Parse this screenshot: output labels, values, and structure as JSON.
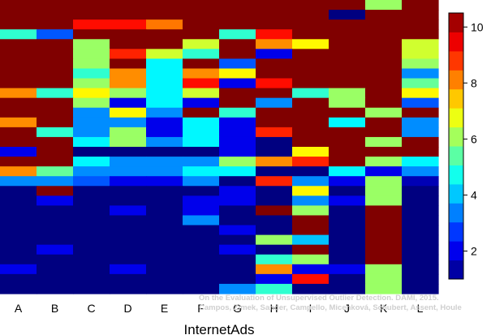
{
  "chart_data": {
    "type": "heatmap",
    "title": "",
    "xlabel": "InternetAds",
    "ylabel": "",
    "categories": [
      "A",
      "B",
      "C",
      "D",
      "E",
      "F",
      "G",
      "H",
      "I",
      "J",
      "K",
      "L"
    ],
    "colorbar": {
      "min": 1,
      "max": 10.5,
      "ticks": [
        2,
        4,
        6,
        8,
        10
      ]
    },
    "row_count": 30,
    "cell_levels": [
      [
        10.5,
        10.5,
        10.5,
        10.5,
        10.5,
        10.5,
        10.5,
        10.5,
        10.5,
        10.5,
        6.0,
        10.5
      ],
      [
        10.5,
        10.5,
        10.5,
        10.5,
        10.5,
        10.5,
        10.5,
        10.5,
        10.5,
        1.0,
        10.5,
        10.5
      ],
      [
        10.5,
        10.5,
        9.2,
        9.2,
        8.2,
        10.5,
        10.5,
        10.5,
        10.5,
        10.5,
        10.5,
        10.5
      ],
      [
        5.0,
        3.0,
        10.5,
        10.5,
        10.5,
        10.5,
        5.0,
        9.2,
        10.5,
        10.5,
        10.5,
        10.5
      ],
      [
        10.5,
        10.5,
        6.0,
        10.5,
        10.5,
        6.5,
        10.5,
        8.0,
        7.0,
        10.5,
        10.5,
        6.5
      ],
      [
        10.5,
        10.5,
        6.0,
        9.0,
        6.5,
        5.0,
        10.5,
        2.0,
        10.5,
        10.5,
        10.5,
        6.5
      ],
      [
        10.5,
        10.5,
        6.0,
        10.5,
        4.5,
        10.5,
        3.0,
        10.5,
        10.5,
        10.5,
        10.5,
        6.0
      ],
      [
        10.5,
        10.5,
        5.0,
        8.0,
        4.5,
        8.0,
        7.0,
        10.5,
        10.5,
        10.5,
        10.5,
        3.5
      ],
      [
        10.5,
        10.5,
        6.0,
        8.0,
        4.5,
        9.2,
        2.0,
        9.2,
        10.5,
        10.5,
        10.5,
        5.5
      ],
      [
        8.0,
        5.0,
        7.0,
        6.0,
        4.5,
        6.5,
        10.5,
        10.5,
        5.0,
        6.0,
        10.5,
        7.0
      ],
      [
        10.5,
        10.5,
        6.0,
        2.0,
        4.5,
        2.0,
        10.5,
        3.5,
        10.5,
        6.0,
        10.5,
        3.0
      ],
      [
        10.5,
        10.5,
        3.5,
        7.0,
        3.5,
        10.5,
        5.0,
        10.5,
        10.5,
        10.5,
        6.0,
        10.5
      ],
      [
        8.0,
        10.5,
        3.5,
        3.5,
        2.0,
        4.5,
        2.0,
        10.5,
        10.5,
        4.5,
        10.5,
        3.5
      ],
      [
        10.5,
        5.0,
        3.5,
        6.0,
        2.0,
        4.5,
        2.0,
        9.0,
        10.5,
        10.5,
        10.5,
        3.5
      ],
      [
        10.5,
        10.5,
        4.5,
        6.0,
        3.5,
        4.5,
        2.0,
        1.0,
        10.5,
        10.5,
        6.0,
        10.5
      ],
      [
        2.0,
        10.5,
        1.0,
        1.0,
        1.0,
        1.0,
        2.0,
        1.0,
        7.0,
        10.5,
        10.5,
        10.5
      ],
      [
        10.5,
        10.5,
        4.5,
        3.5,
        3.5,
        3.5,
        6.0,
        8.0,
        9.0,
        10.5,
        6.0,
        4.5
      ],
      [
        8.0,
        5.5,
        3.5,
        3.5,
        3.5,
        4.5,
        4.5,
        1.0,
        1.0,
        4.5,
        2.0,
        3.5
      ],
      [
        3.5,
        3.5,
        3.0,
        2.0,
        2.0,
        3.5,
        1.0,
        9.0,
        3.5,
        2.0,
        6.0,
        1.5
      ],
      [
        1.0,
        10.5,
        1.0,
        1.0,
        1.0,
        1.0,
        2.0,
        1.0,
        7.0,
        1.0,
        6.0,
        1.0
      ],
      [
        1.0,
        2.0,
        1.0,
        1.0,
        1.0,
        2.0,
        2.0,
        1.0,
        3.5,
        2.0,
        6.0,
        1.0
      ],
      [
        1.0,
        1.0,
        1.0,
        2.0,
        1.0,
        2.0,
        1.0,
        10.5,
        6.0,
        1.0,
        10.5,
        1.0
      ],
      [
        1.0,
        1.0,
        1.0,
        1.0,
        1.0,
        3.5,
        1.0,
        1.0,
        10.5,
        1.0,
        10.5,
        1.0
      ],
      [
        1.0,
        1.0,
        1.0,
        1.0,
        1.0,
        1.0,
        2.0,
        1.0,
        10.5,
        1.0,
        10.5,
        1.0
      ],
      [
        1.0,
        1.0,
        1.0,
        1.0,
        1.0,
        1.0,
        1.0,
        6.0,
        4.0,
        1.0,
        10.5,
        1.0
      ],
      [
        1.0,
        2.0,
        1.0,
        1.0,
        1.0,
        1.0,
        2.0,
        1.0,
        10.5,
        1.0,
        10.5,
        1.0
      ],
      [
        1.0,
        1.0,
        1.0,
        1.0,
        1.0,
        1.0,
        1.0,
        5.0,
        6.0,
        1.0,
        10.5,
        1.0
      ],
      [
        2.0,
        1.0,
        1.0,
        2.0,
        1.0,
        1.0,
        1.0,
        8.0,
        2.0,
        2.0,
        6.0,
        1.0
      ],
      [
        1.0,
        1.0,
        1.0,
        1.0,
        1.0,
        1.0,
        1.0,
        2.0,
        9.2,
        1.0,
        6.0,
        1.0
      ],
      [
        1.0,
        1.0,
        1.0,
        1.0,
        1.0,
        1.0,
        3.5,
        5.0,
        1.0,
        1.0,
        6.0,
        1.0
      ]
    ]
  },
  "watermark": {
    "line1": "On the Evaluation of Unsupervised Outlier Detection. DAMI, 2015.",
    "line2": "Campos, Zimek, Sander, Campello, Micenková, Schubert, Assent, Houle"
  }
}
